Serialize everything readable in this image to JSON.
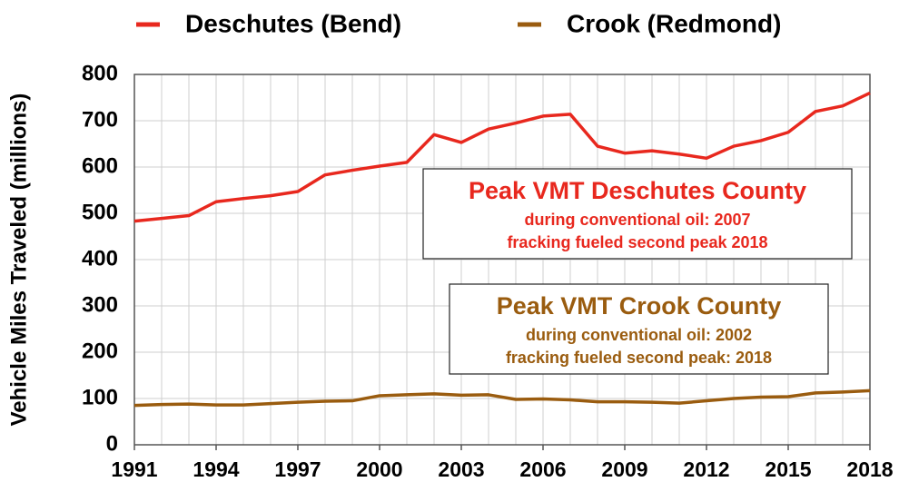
{
  "chart_data": {
    "type": "line",
    "y_label": "Vehicle Miles Traveled (millions)",
    "x": [
      1991,
      1992,
      1993,
      1994,
      1995,
      1996,
      1997,
      1998,
      1999,
      2000,
      2001,
      2002,
      2003,
      2004,
      2005,
      2006,
      2007,
      2008,
      2009,
      2010,
      2011,
      2012,
      2013,
      2014,
      2015,
      2016,
      2017,
      2018
    ],
    "series": [
      {
        "name": "Deschutes (Bend)",
        "color": "#e8281e",
        "values": [
          483,
          489,
          495,
          525,
          532,
          538,
          547,
          583,
          593,
          602,
          610,
          670,
          653,
          682,
          695,
          710,
          714,
          645,
          630,
          635,
          628,
          619,
          645,
          657,
          675,
          720,
          732,
          760
        ]
      },
      {
        "name": "Crook (Redmond)",
        "color": "#9a5c0f",
        "values": [
          85,
          87,
          88,
          86,
          86,
          89,
          92,
          94,
          95,
          106,
          108,
          110,
          107,
          108,
          98,
          99,
          97,
          93,
          93,
          92,
          90,
          95,
          100,
          103,
          104,
          112,
          114,
          117
        ]
      }
    ],
    "xlim": [
      1991,
      2018
    ],
    "xticks": [
      1991,
      1994,
      1997,
      2000,
      2003,
      2006,
      2009,
      2012,
      2015,
      2018
    ],
    "ylim": [
      0,
      800
    ],
    "yticks": [
      0,
      100,
      200,
      300,
      400,
      500,
      600,
      700,
      800
    ],
    "grid": true,
    "annotations": [
      {
        "color": "#e8281e",
        "lines": [
          "Peak VMT Deschutes County",
          "during conventional oil: 2007",
          "fracking fueled second peak 2018"
        ]
      },
      {
        "color": "#9a5c0f",
        "lines": [
          "Peak VMT Crook County",
          "during conventional oil: 2002",
          "fracking fueled second peak: 2018"
        ]
      }
    ]
  }
}
